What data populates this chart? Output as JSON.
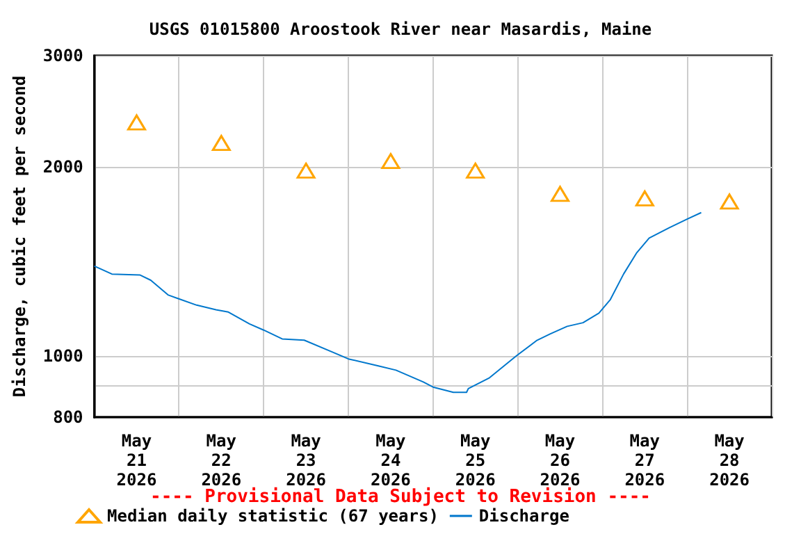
{
  "chart_data": {
    "type": "line",
    "title": "USGS 01015800 Aroostook River near Masardis, Maine",
    "ylabel": "Discharge, cubic feet per second",
    "annotations": [
      "---- Provisional Data Subject to Revision ----"
    ],
    "log": "y",
    "grid": true,
    "legend": "bottom",
    "xlim": [
      "2026-05-21T00:00",
      "2026-05-29T00:00"
    ],
    "xticks": [
      {
        "value": "2026-05-21T00:00",
        "label": null
      },
      {
        "value": "2026-05-21T12:00",
        "label": "May\n21\n2026"
      },
      {
        "value": "2026-05-22T00:00",
        "label": null
      },
      {
        "value": "2026-05-22T12:00",
        "label": "May\n22\n2026"
      },
      {
        "value": "2026-05-23T00:00",
        "label": null
      },
      {
        "value": "2026-05-23T12:00",
        "label": "May\n23\n2026"
      },
      {
        "value": "2026-05-24T00:00",
        "label": null
      },
      {
        "value": "2026-05-24T12:00",
        "label": "May\n24\n2026"
      },
      {
        "value": "2026-05-25T00:00",
        "label": null
      },
      {
        "value": "2026-05-25T12:00",
        "label": "May\n25\n2026"
      },
      {
        "value": "2026-05-26T00:00",
        "label": null
      },
      {
        "value": "2026-05-26T12:00",
        "label": "May\n26\n2026"
      },
      {
        "value": "2026-05-27T00:00",
        "label": null
      },
      {
        "value": "2026-05-27T12:00",
        "label": "May\n27\n2026"
      },
      {
        "value": "2026-05-28T00:00",
        "label": null
      },
      {
        "value": "2026-05-28T12:00",
        "label": "May\n28\n2026"
      },
      {
        "value": "2026-05-29T00:00",
        "label": null
      }
    ],
    "ylim": [
      800,
      3000
    ],
    "yticks": [
      800,
      {
        "value": 900,
        "label": null
      },
      1000,
      2000,
      3000
    ],
    "series": [
      {
        "name": "Median daily statistic (67 years)",
        "type": "scatter",
        "marker": "triangle",
        "color": "#ffa500",
        "x": [
          "2026-05-21T12:00",
          "2026-05-22T12:00",
          "2026-05-23T12:00",
          "2026-05-24T12:00",
          "2026-05-25T12:00",
          "2026-05-26T12:00",
          "2026-05-27T12:00",
          "2026-05-28T12:00"
        ],
        "values": [
          2350,
          2180,
          1970,
          2040,
          1970,
          1810,
          1780,
          1760
        ]
      },
      {
        "name": "Discharge",
        "marker": "none",
        "color": "#0077cc",
        "x": [
          "2026-05-21T00:00",
          "2026-05-21T05:00",
          "2026-05-21T13:00",
          "2026-05-21T16:00",
          "2026-05-21T21:00",
          "2026-05-22T05:00",
          "2026-05-22T10:30",
          "2026-05-22T14:00",
          "2026-05-22T20:00",
          "2026-05-23T00:00",
          "2026-05-23T05:15",
          "2026-05-23T11:30",
          "2026-05-23T19:30",
          "2026-05-24T00:00",
          "2026-05-24T08:30",
          "2026-05-24T13:30",
          "2026-05-24T21:15",
          "2026-05-25T00:00",
          "2026-05-25T05:45",
          "2026-05-25T09:30",
          "2026-05-25T10:00",
          "2026-05-25T16:00",
          "2026-05-25T23:30",
          "2026-05-26T05:30",
          "2026-05-26T09:15",
          "2026-05-26T14:00",
          "2026-05-26T18:30",
          "2026-05-26T23:00",
          "2026-05-27T02:15",
          "2026-05-27T06:00",
          "2026-05-27T09:45",
          "2026-05-27T13:15",
          "2026-05-27T19:00",
          "2026-05-28T00:00",
          "2026-05-28T04:00"
        ],
        "values": [
          1390,
          1350,
          1345,
          1320,
          1250,
          1205,
          1185,
          1175,
          1125,
          1100,
          1065,
          1060,
          1015,
          990,
          965,
          950,
          910,
          893,
          876,
          876,
          888,
          924,
          1000,
          1060,
          1085,
          1115,
          1130,
          1170,
          1230,
          1350,
          1460,
          1540,
          1600,
          1650,
          1690
        ]
      }
    ]
  }
}
